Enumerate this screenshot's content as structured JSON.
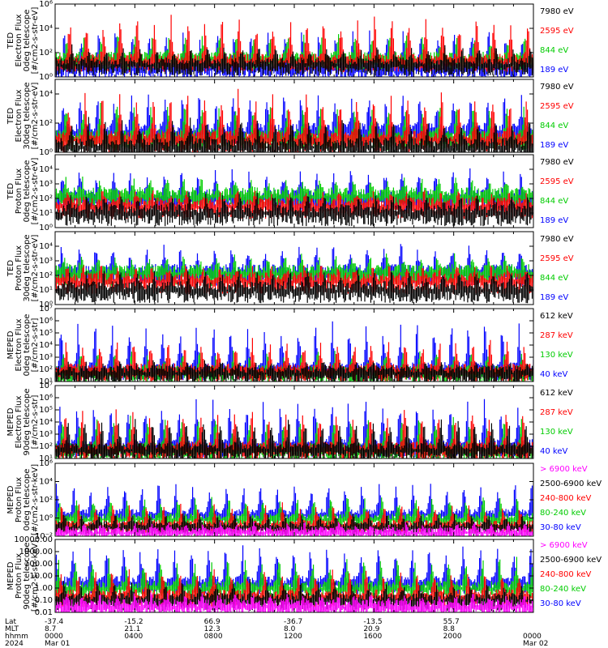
{
  "chart_data": [
    {
      "type": "line",
      "ylabel": [
        "TED",
        "Electron Flux",
        "0deg telescope",
        "[#/cm2-s-str-eV]"
      ],
      "yscale": "log",
      "ylim": [
        1,
        1000000
      ],
      "ytick_labels": [
        "10⁰",
        "10²",
        "10⁴",
        "10⁶"
      ],
      "ytick_values": [
        1,
        100,
        10000,
        1000000
      ],
      "series": [
        {
          "name": "7980 eV",
          "color": "#000000",
          "typical": 20,
          "peak": 300
        },
        {
          "name": "2595 eV",
          "color": "#ff0000",
          "typical": 40,
          "peak": 100000
        },
        {
          "name": "844 eV",
          "color": "#00cc00",
          "typical": 60,
          "peak": 3000
        },
        {
          "name": "189 eV",
          "color": "#0000ff",
          "typical": 10,
          "peak": 10000
        }
      ]
    },
    {
      "type": "line",
      "ylabel": [
        "TED",
        "Electron Flux",
        "30deg telescope",
        "[#/cm2-s-str-eV]"
      ],
      "yscale": "log",
      "ylim": [
        1,
        100000
      ],
      "ytick_labels": [
        "10⁰",
        "10²",
        "10⁴"
      ],
      "ytick_values": [
        1,
        100,
        10000
      ],
      "series": [
        {
          "name": "7980 eV",
          "color": "#000000",
          "typical": 5,
          "peak": 200
        },
        {
          "name": "2595 eV",
          "color": "#ff0000",
          "typical": 15,
          "peak": 20000
        },
        {
          "name": "844 eV",
          "color": "#00cc00",
          "typical": 20,
          "peak": 2000
        },
        {
          "name": "189 eV",
          "color": "#0000ff",
          "typical": 50,
          "peak": 10000
        }
      ]
    },
    {
      "type": "line",
      "ylabel": [
        "TED",
        "Proton Flux",
        "0deg telescope",
        "[#/cm2-s-str-eV]"
      ],
      "yscale": "log",
      "ylim": [
        1,
        100000
      ],
      "ytick_labels": [
        "10⁰",
        "10¹",
        "10²",
        "10³",
        "10⁴"
      ],
      "ytick_values": [
        1,
        10,
        100,
        1000,
        10000
      ],
      "series": [
        {
          "name": "7980 eV",
          "color": "#000000",
          "typical": 20,
          "peak": 200
        },
        {
          "name": "2595 eV",
          "color": "#ff0000",
          "typical": 60,
          "peak": 300
        },
        {
          "name": "844 eV",
          "color": "#00cc00",
          "typical": 300,
          "peak": 2000
        },
        {
          "name": "189 eV",
          "color": "#0000ff",
          "typical": 200,
          "peak": 10000
        }
      ]
    },
    {
      "type": "line",
      "ylabel": [
        "TED",
        "Proton Flux",
        "30deg telescope",
        "[#/cm2-s-str-eV]"
      ],
      "yscale": "log",
      "ylim": [
        1,
        100000
      ],
      "ytick_labels": [
        "10⁰",
        "10¹",
        "10²",
        "10³",
        "10⁴"
      ],
      "ytick_values": [
        1,
        10,
        100,
        1000,
        10000
      ],
      "series": [
        {
          "name": "7980 eV",
          "color": "#000000",
          "typical": 20,
          "peak": 200
        },
        {
          "name": "2595 eV",
          "color": "#ff0000",
          "typical": 80,
          "peak": 400
        },
        {
          "name": "844 eV",
          "color": "#00cc00",
          "typical": 300,
          "peak": 2000
        },
        {
          "name": "189 eV",
          "color": "#0000ff",
          "typical": 300,
          "peak": 10000
        }
      ]
    },
    {
      "type": "line",
      "ylabel": [
        "MEPED",
        "Electron Flux",
        "0deg telescope",
        "[#/cm2-s-str]"
      ],
      "yscale": "log",
      "ylim": [
        10,
        10000000
      ],
      "ytick_labels": [
        "10¹",
        "10²",
        "10³",
        "10⁴",
        "10⁵",
        "10⁶",
        "10⁷"
      ],
      "ytick_values": [
        10,
        100,
        1000,
        10000,
        100000,
        1000000,
        10000000
      ],
      "series": [
        {
          "name": "612 keV",
          "color": "#000000",
          "typical": 100,
          "peak": 400
        },
        {
          "name": "287 keV",
          "color": "#ff0000",
          "typical": 150,
          "peak": 30000
        },
        {
          "name": "130 keV",
          "color": "#00cc00",
          "typical": 110,
          "peak": 3000
        },
        {
          "name": "40 keV",
          "color": "#0000ff",
          "typical": 200,
          "peak": 1000000
        }
      ]
    },
    {
      "type": "line",
      "ylabel": [
        "MEPED",
        "Electron Flux",
        "90deg telescope",
        "[#/cm2-s-str]"
      ],
      "yscale": "log",
      "ylim": [
        10,
        10000000
      ],
      "ytick_labels": [
        "10¹",
        "10²",
        "10³",
        "10⁴",
        "10⁵",
        "10⁶",
        "10⁷"
      ],
      "ytick_values": [
        10,
        100,
        1000,
        10000,
        100000,
        1000000,
        10000000
      ],
      "series": [
        {
          "name": "612 keV",
          "color": "#000000",
          "typical": 100,
          "peak": 20000
        },
        {
          "name": "287 keV",
          "color": "#ff0000",
          "typical": 120,
          "peak": 100000
        },
        {
          "name": "130 keV",
          "color": "#00cc00",
          "typical": 100,
          "peak": 30000
        },
        {
          "name": "40 keV",
          "color": "#0000ff",
          "typical": 200,
          "peak": 1000000
        }
      ]
    },
    {
      "type": "line",
      "ylabel": [
        "MEPED",
        "Proton Flux",
        "0deg telescope",
        "[#/cm2-s-str-keV]"
      ],
      "yscale": "log",
      "ylim": [
        0.01,
        1000000
      ],
      "ytick_labels": [
        "10⁻²",
        "10⁰",
        "10²",
        "10⁴",
        "10⁶"
      ],
      "ytick_values": [
        0.01,
        1,
        100,
        10000,
        1000000
      ],
      "series": [
        {
          "name": "> 6900 keV",
          "color": "#ff00ff",
          "typical": 0.05,
          "peak": 0.3
        },
        {
          "name": "2500-6900 keV",
          "color": "#000000",
          "typical": 0.2,
          "peak": 3
        },
        {
          "name": "240-800 keV",
          "color": "#ff0000",
          "typical": 0.3,
          "peak": 30
        },
        {
          "name": "80-240 keV",
          "color": "#00cc00",
          "typical": 1.5,
          "peak": 300
        },
        {
          "name": "30-80 keV",
          "color": "#0000ff",
          "typical": 5,
          "peak": 10000
        }
      ]
    },
    {
      "type": "line",
      "ylabel": [
        "MEPED",
        "Proton Flux",
        "90deg telescope",
        "[#/cm2-s-str-keV]"
      ],
      "yscale": "log",
      "ylim": [
        0.01,
        10000
      ],
      "ytick_labels": [
        "0.01",
        "0.10",
        "1.00",
        "10.00",
        "100.00",
        "1000.00",
        "10000.00"
      ],
      "ytick_values": [
        0.01,
        0.1,
        1,
        10,
        100,
        1000,
        10000
      ],
      "series": [
        {
          "name": "> 6900 keV",
          "color": "#ff00ff",
          "typical": 0.06,
          "peak": 0.3
        },
        {
          "name": "2500-6900 keV",
          "color": "#000000",
          "typical": 0.2,
          "peak": 3
        },
        {
          "name": "240-800 keV",
          "color": "#ff0000",
          "typical": 0.4,
          "peak": 30
        },
        {
          "name": "80-240 keV",
          "color": "#00cc00",
          "typical": 2,
          "peak": 300
        },
        {
          "name": "30-80 keV",
          "color": "#0000ff",
          "typical": 5,
          "peak": 3000
        }
      ]
    }
  ],
  "x_axis": {
    "range": [
      "2024-03-01 00:00",
      "2024-03-02 00:00"
    ],
    "row_labels": [
      "Lat",
      "MLT",
      "hhmm",
      "2024"
    ],
    "ticks": [
      {
        "time": "2024-03-01 00:00",
        "lat": "-37.4",
        "mlt": "8.7",
        "hhmm": "0000",
        "date": "Mar 01"
      },
      {
        "time": "2024-03-01 04:00",
        "lat": "-15.2",
        "mlt": "21.1",
        "hhmm": "0400",
        "date": ""
      },
      {
        "time": "2024-03-01 08:00",
        "lat": "66.9",
        "mlt": "12.3",
        "hhmm": "0800",
        "date": ""
      },
      {
        "time": "2024-03-01 12:00",
        "lat": "-36.7",
        "mlt": "8.0",
        "hhmm": "1200",
        "date": ""
      },
      {
        "time": "2024-03-01 16:00",
        "lat": "-13.5",
        "mlt": "20.9",
        "hhmm": "1600",
        "date": ""
      },
      {
        "time": "2024-03-01 20:00",
        "lat": "55.7",
        "mlt": "8.8",
        "hhmm": "2000",
        "date": ""
      },
      {
        "time": "2024-03-02 00:00",
        "lat": "",
        "mlt": "",
        "hhmm": "0000",
        "date": "Mar 02"
      }
    ]
  }
}
